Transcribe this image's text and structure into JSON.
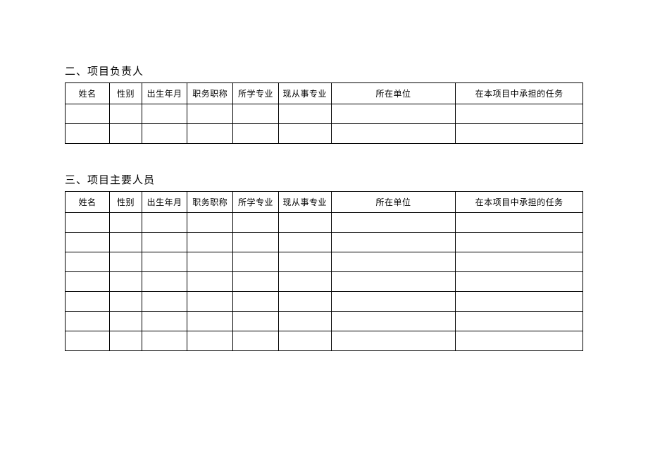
{
  "section1": {
    "title": "二、项目负责人"
  },
  "section2": {
    "title": "三、项目主要人员"
  },
  "headers": {
    "name": "姓名",
    "gender": "性别",
    "birth": "出生年月",
    "job_title": "职务职称",
    "major": "所学专业",
    "field": "现从事专业",
    "org": "所在单位",
    "task": "在本项目中承担的任务"
  },
  "table1_rows": 2,
  "table2_rows": 7,
  "colors": {
    "border": "#000000",
    "background": "#ffffff",
    "text": "#000000"
  },
  "font": {
    "family": "SimSun",
    "title_size_pt": 15,
    "cell_size_pt": 12
  }
}
